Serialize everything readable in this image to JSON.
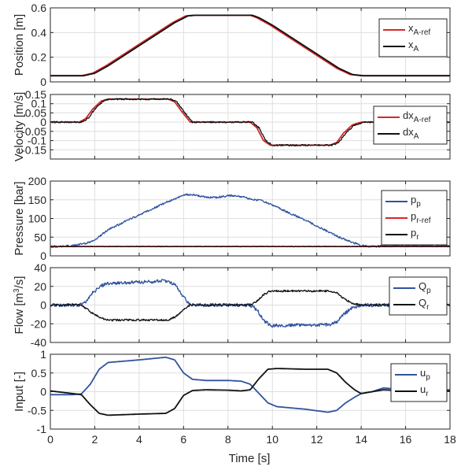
{
  "figure": {
    "xlabel": "Time [s]"
  },
  "chart_data": [
    {
      "type": "line",
      "ylabel": "Position [m]",
      "xlim": [
        0,
        18
      ],
      "ylim": [
        0,
        0.6
      ],
      "xticks": [
        0,
        2,
        4,
        6,
        8,
        10,
        12,
        14,
        16,
        18
      ],
      "yticks": [
        0,
        0.2,
        0.4,
        0.6
      ],
      "ytick_labels": [
        "0",
        "0.2",
        "0.4",
        "0.6"
      ],
      "show_xtick_labels": false,
      "grid": true,
      "legend": {
        "placement": "right",
        "entries": [
          {
            "base": "x",
            "sub": "A-ref",
            "color": "#d62728"
          },
          {
            "base": "x",
            "sub": "A",
            "color": "#111111"
          }
        ]
      },
      "series": [
        {
          "name": "xA-ref",
          "color": "#d62728",
          "noise": 0,
          "x": [
            0,
            1.4,
            1.9,
            2.5,
            5.5,
            6.1,
            6.5,
            9.0,
            9.3,
            9.9,
            12.9,
            13.5,
            14.0,
            18
          ],
          "y": [
            0.05,
            0.05,
            0.07,
            0.13,
            0.48,
            0.535,
            0.54,
            0.54,
            0.52,
            0.46,
            0.11,
            0.06,
            0.05,
            0.05
          ]
        },
        {
          "name": "xA",
          "color": "#111111",
          "noise": 0,
          "x": [
            0,
            1.5,
            2.0,
            2.6,
            5.6,
            6.2,
            6.5,
            9.1,
            9.4,
            10.0,
            13.0,
            13.6,
            14.1,
            18
          ],
          "y": [
            0.05,
            0.05,
            0.07,
            0.13,
            0.48,
            0.535,
            0.54,
            0.54,
            0.52,
            0.46,
            0.11,
            0.06,
            0.05,
            0.05
          ]
        }
      ]
    },
    {
      "type": "line",
      "ylabel": "Velocity [m/s]",
      "xlim": [
        0,
        18
      ],
      "ylim": [
        -0.2,
        0.15
      ],
      "xticks": [
        0,
        2,
        4,
        6,
        8,
        10,
        12,
        14,
        16,
        18
      ],
      "yticks": [
        -0.15,
        -0.1,
        -0.05,
        0,
        0.05,
        0.1,
        0.15
      ],
      "ytick_labels": [
        "-0.15",
        "-0.1",
        "-0.05",
        "0",
        "0.05",
        "0.1",
        "0.15"
      ],
      "show_xtick_labels": false,
      "grid": true,
      "legend": {
        "placement": "right",
        "entries": [
          {
            "base": "dx",
            "sub": "A-ref",
            "color": "#d62728"
          },
          {
            "base": "dx",
            "sub": "A",
            "color": "#111111"
          }
        ]
      },
      "series": [
        {
          "name": "dxA-ref",
          "color": "#d62728",
          "noise": 0,
          "x": [
            0,
            1.3,
            1.6,
            1.9,
            2.3,
            2.6,
            5.3,
            5.6,
            5.9,
            6.3,
            9.0,
            9.3,
            9.6,
            9.9,
            12.6,
            12.9,
            13.2,
            13.6,
            14.0,
            18
          ],
          "y": [
            0,
            0,
            0.02,
            0.07,
            0.115,
            0.125,
            0.125,
            0.11,
            0.06,
            0,
            0,
            -0.03,
            -0.1,
            -0.125,
            -0.125,
            -0.11,
            -0.06,
            -0.015,
            0,
            0
          ]
        },
        {
          "name": "dxA",
          "color": "#111111",
          "noise": 0.004,
          "x": [
            0,
            1.4,
            1.7,
            2.0,
            2.4,
            2.7,
            5.4,
            5.7,
            6.0,
            6.4,
            9.1,
            9.4,
            9.7,
            10.0,
            12.7,
            13.0,
            13.3,
            13.7,
            14.1,
            18
          ],
          "y": [
            0,
            0,
            0.02,
            0.07,
            0.115,
            0.125,
            0.125,
            0.11,
            0.06,
            0,
            0,
            -0.03,
            -0.1,
            -0.125,
            -0.125,
            -0.11,
            -0.06,
            -0.015,
            0,
            0
          ]
        }
      ]
    },
    {
      "type": "line",
      "ylabel": "Pressure [bar]",
      "xlim": [
        0,
        18
      ],
      "ylim": [
        0,
        200
      ],
      "xticks": [
        0,
        2,
        4,
        6,
        8,
        10,
        12,
        14,
        16,
        18
      ],
      "yticks": [
        0,
        50,
        100,
        150,
        200
      ],
      "ytick_labels": [
        "0",
        "50",
        "100",
        "150",
        "200"
      ],
      "show_xtick_labels": false,
      "grid": true,
      "legend": {
        "placement": "right",
        "entries": [
          {
            "base": "p",
            "sub": "p",
            "color": "#3053a0"
          },
          {
            "base": "p",
            "sub": "r-ref",
            "color": "#d62728"
          },
          {
            "base": "p",
            "sub": "r",
            "color": "#111111"
          }
        ]
      },
      "series": [
        {
          "name": "pp",
          "color": "#3053a0",
          "noise": 2.5,
          "x": [
            0,
            1.0,
            1.5,
            2.0,
            2.6,
            4.0,
            5.5,
            6.0,
            6.4,
            7.0,
            7.5,
            8.0,
            8.5,
            9.0,
            9.5,
            10.5,
            11.5,
            12.5,
            13.0,
            13.5,
            14.0,
            14.5,
            15.0,
            16.0,
            17.0,
            18
          ],
          "y": [
            25,
            27,
            32,
            42,
            70,
            110,
            150,
            163,
            164,
            157,
            156,
            161,
            160,
            152,
            148,
            122,
            95,
            65,
            50,
            38,
            28,
            25,
            26,
            28,
            27,
            27
          ]
        },
        {
          "name": "pr-ref",
          "color": "#d62728",
          "noise": 0,
          "x": [
            0,
            18
          ],
          "y": [
            25,
            25
          ]
        },
        {
          "name": "pr",
          "color": "#111111",
          "noise": 0.8,
          "x": [
            0,
            18
          ],
          "y": [
            25,
            25
          ]
        }
      ]
    },
    {
      "type": "line",
      "ylabel": "Flow [m3/s]",
      "ylabel_rich": {
        "before": "Flow [m",
        "sup": "3",
        "after": "/s]"
      },
      "xlim": [
        0,
        18
      ],
      "ylim": [
        -40,
        40
      ],
      "xticks": [
        0,
        2,
        4,
        6,
        8,
        10,
        12,
        14,
        16,
        18
      ],
      "yticks": [
        -40,
        -20,
        0,
        20,
        40
      ],
      "ytick_labels": [
        "-40",
        "-20",
        "0",
        "20",
        "40"
      ],
      "show_xtick_labels": false,
      "grid": true,
      "legend": {
        "placement": "right",
        "entries": [
          {
            "base": "Q",
            "sub": "p",
            "color": "#3053a0"
          },
          {
            "base": "Q",
            "sub": "r",
            "color": "#111111"
          }
        ]
      },
      "series": [
        {
          "name": "Qp",
          "color": "#3053a0",
          "noise": 1.8,
          "x": [
            0,
            1.3,
            1.6,
            1.9,
            2.3,
            2.6,
            5.3,
            5.6,
            5.9,
            6.3,
            9.0,
            9.3,
            9.6,
            9.9,
            12.6,
            12.9,
            13.2,
            13.6,
            14.0,
            18
          ],
          "y": [
            0,
            0,
            4,
            13,
            21,
            23,
            26,
            22,
            12,
            0,
            0,
            -5,
            -16,
            -22,
            -21,
            -18,
            -10,
            -3,
            0,
            0
          ]
        },
        {
          "name": "Qr",
          "color": "#111111",
          "noise": 1.0,
          "x": [
            0,
            1.3,
            1.6,
            1.9,
            2.3,
            2.6,
            5.3,
            5.6,
            5.9,
            6.3,
            9.0,
            9.3,
            9.6,
            9.9,
            12.6,
            12.9,
            13.2,
            13.6,
            14.0,
            18
          ],
          "y": [
            0,
            0,
            -3,
            -9,
            -14,
            -16,
            -16,
            -13,
            -7,
            0,
            0,
            4,
            11,
            15,
            15,
            13,
            7,
            2,
            0,
            0
          ]
        }
      ]
    },
    {
      "type": "line",
      "ylabel": "Input [-]",
      "xlim": [
        0,
        18
      ],
      "ylim": [
        -1,
        1
      ],
      "xticks": [
        0,
        2,
        4,
        6,
        8,
        10,
        12,
        14,
        16,
        18
      ],
      "yticks": [
        -1,
        -0.5,
        0,
        0.5,
        1
      ],
      "ytick_labels": [
        "-1",
        "-0.5",
        "0",
        "0.5",
        "1"
      ],
      "show_xtick_labels": true,
      "xtick_labels": [
        "0",
        "2",
        "4",
        "6",
        "8",
        "10",
        "12",
        "14",
        "16",
        "18"
      ],
      "grid": true,
      "legend": {
        "placement": "right",
        "entries": [
          {
            "base": "u",
            "sub": "p",
            "color": "#3053a0"
          },
          {
            "base": "u",
            "sub": "r",
            "color": "#111111"
          }
        ]
      },
      "series": [
        {
          "name": "up",
          "color": "#3053a0",
          "noise": 0,
          "x": [
            0,
            1.0,
            1.4,
            1.8,
            2.2,
            2.6,
            4.0,
            5.2,
            5.6,
            6.0,
            6.4,
            7.0,
            8.0,
            8.6,
            9.0,
            9.4,
            9.8,
            10.2,
            11.5,
            12.5,
            12.9,
            13.3,
            13.7,
            14.0,
            14.5,
            15.0,
            16.0,
            18
          ],
          "y": [
            -0.08,
            -0.08,
            -0.06,
            0.2,
            0.6,
            0.78,
            0.85,
            0.92,
            0.85,
            0.5,
            0.33,
            0.3,
            0.3,
            0.28,
            0.2,
            -0.05,
            -0.3,
            -0.4,
            -0.47,
            -0.55,
            -0.5,
            -0.3,
            -0.15,
            -0.05,
            0.0,
            0.1,
            0.05,
            0.05
          ]
        },
        {
          "name": "ur",
          "color": "#111111",
          "noise": 0,
          "x": [
            0,
            1.0,
            1.4,
            1.8,
            2.2,
            2.6,
            4.0,
            5.2,
            5.6,
            6.0,
            6.4,
            7.0,
            8.0,
            8.6,
            9.0,
            9.4,
            9.8,
            10.2,
            11.5,
            12.5,
            12.9,
            13.3,
            13.7,
            14.0,
            14.5,
            15.0,
            16.0,
            18
          ],
          "y": [
            0.02,
            -0.05,
            -0.08,
            -0.35,
            -0.58,
            -0.63,
            -0.6,
            -0.58,
            -0.45,
            -0.1,
            0.03,
            0.05,
            0.04,
            0.02,
            0.05,
            0.35,
            0.6,
            0.62,
            0.6,
            0.6,
            0.5,
            0.25,
            0.05,
            -0.05,
            0.0,
            0.05,
            0.02,
            0.02
          ]
        }
      ]
    }
  ]
}
